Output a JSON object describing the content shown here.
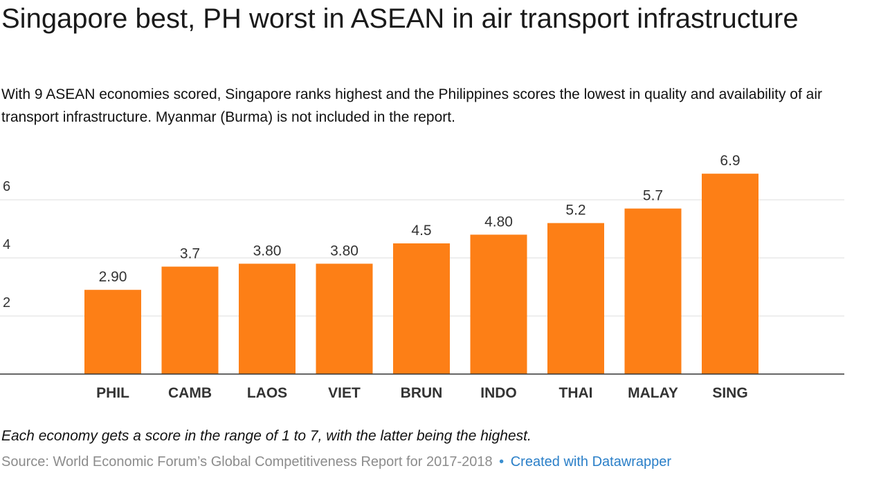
{
  "header": {
    "title": "Singapore best, PH worst in ASEAN in air transport infrastructure",
    "subtitle": "With 9 ASEAN economies scored, Singapore ranks highest and the Philippines scores the lowest in quality and availability of air transport infrastructure. Myanmar (Burma) is not included in the report."
  },
  "chart_data": {
    "type": "bar",
    "title": "Singapore best, PH worst in ASEAN in air transport infrastructure",
    "categories": [
      "PHIL",
      "CAMB",
      "LAOS",
      "VIET",
      "BRUN",
      "INDO",
      "THAI",
      "MALAY",
      "SING"
    ],
    "values": [
      2.9,
      3.7,
      3.8,
      3.8,
      4.5,
      4.8,
      5.2,
      5.7,
      6.9
    ],
    "value_labels": [
      "2.90",
      "3.7",
      "3.80",
      "3.80",
      "4.5",
      "4.80",
      "5.2",
      "5.7",
      "6.9"
    ],
    "yticks": [
      "2",
      "4",
      "6"
    ],
    "ytick_values": [
      2,
      4,
      6
    ],
    "ylim": [
      0,
      7
    ],
    "grid": true,
    "bar_color": "#fd7f16",
    "gridline_color": "#dcdcdc",
    "baseline_color": "#333333"
  },
  "footer": {
    "note": "Each economy gets a score in the range of 1 to 7, with the latter being the highest.",
    "source": "Source: World Economic Forum’s Global Competitiveness Report for 2017-2018",
    "separator": "•",
    "credit": "Created with Datawrapper"
  }
}
